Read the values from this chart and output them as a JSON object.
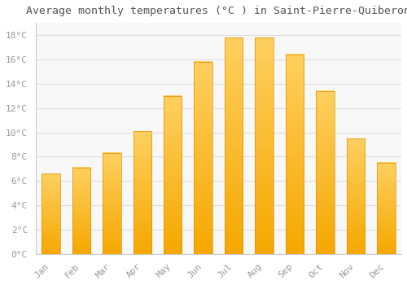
{
  "title": "Average monthly temperatures (°C ) in Saint-Pierre-Quiberon",
  "months": [
    "Jan",
    "Feb",
    "Mar",
    "Apr",
    "May",
    "Jun",
    "Jul",
    "Aug",
    "Sep",
    "Oct",
    "Nov",
    "Dec"
  ],
  "values": [
    6.6,
    7.1,
    8.3,
    10.1,
    13.0,
    15.8,
    17.8,
    17.8,
    16.4,
    13.4,
    9.5,
    7.5
  ],
  "bar_color_bottom": "#F5A800",
  "bar_color_top": "#FFD060",
  "background_color": "#FFFFFF",
  "plot_bg_color": "#F8F8F8",
  "grid_color": "#DDDDDD",
  "ylim": [
    0,
    19
  ],
  "yticks": [
    0,
    2,
    4,
    6,
    8,
    10,
    12,
    14,
    16,
    18
  ],
  "ytick_labels": [
    "0°C",
    "2°C",
    "4°C",
    "6°C",
    "8°C",
    "10°C",
    "12°C",
    "14°C",
    "16°C",
    "18°C"
  ],
  "title_fontsize": 9.5,
  "tick_fontsize": 8,
  "title_color": "#555555",
  "tick_color": "#999999",
  "bar_width": 0.6,
  "spine_color": "#CCCCCC"
}
